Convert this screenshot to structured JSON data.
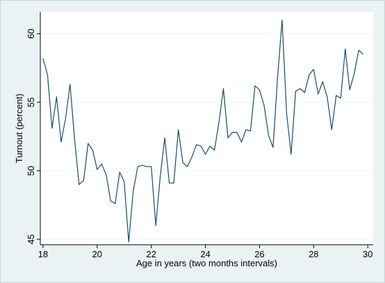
{
  "chart_data": {
    "type": "line",
    "title": "",
    "xlabel": "Age in years (two months intervals)",
    "ylabel": "Turnout (percent)",
    "xlim": [
      17.9,
      30.2
    ],
    "ylim": [
      44.6,
      61.6
    ],
    "xticks": [
      18,
      20,
      22,
      24,
      26,
      28,
      30
    ],
    "yticks": [
      45,
      50,
      55,
      60
    ],
    "grid": true,
    "colors": {
      "line": "#1a4a6a",
      "plot_bg": "#ffffff",
      "background": "#eaf2f3",
      "grid": "#eaf2f3"
    },
    "series": [
      {
        "x": [
          18.0,
          18.1667,
          18.3333,
          18.5,
          18.6667,
          18.8333,
          19.0,
          19.1667,
          19.3333,
          19.5,
          19.6667,
          19.8333,
          20.0,
          20.1667,
          20.3333,
          20.5,
          20.6667,
          20.8333,
          21.0,
          21.1667,
          21.3333,
          21.5,
          21.6667,
          21.8333,
          22.0,
          22.1667,
          22.3333,
          22.5,
          22.6667,
          22.8333,
          23.0,
          23.1667,
          23.3333,
          23.5,
          23.6667,
          23.8333,
          24.0,
          24.1667,
          24.3333,
          24.5,
          24.6667,
          24.8333,
          25.0,
          25.1667,
          25.3333,
          25.5,
          25.6667,
          25.8333,
          26.0,
          26.1667,
          26.3333,
          26.5,
          26.6667,
          26.8333,
          27.0,
          27.1667,
          27.3333,
          27.5,
          27.6667,
          27.8333,
          28.0,
          28.1667,
          28.3333,
          28.5,
          28.6667,
          28.8333,
          29.0,
          29.1667,
          29.3333,
          29.5,
          29.6667,
          29.8333
        ],
        "values": [
          58.2,
          57.0,
          53.1,
          55.4,
          52.1,
          53.8,
          56.3,
          52.3,
          49.0,
          49.3,
          52.0,
          51.5,
          50.1,
          50.5,
          49.7,
          47.8,
          47.6,
          49.9,
          49.2,
          44.8,
          48.5,
          50.3,
          50.4,
          50.3,
          50.3,
          46.0,
          49.6,
          52.4,
          49.1,
          49.1,
          53.0,
          50.6,
          50.3,
          51.0,
          51.9,
          51.8,
          51.2,
          51.8,
          51.5,
          53.5,
          56.0,
          52.4,
          52.8,
          52.8,
          52.1,
          53.0,
          52.9,
          56.2,
          55.9,
          54.8,
          52.6,
          51.7,
          56.8,
          61.0,
          54.2,
          51.2,
          55.8,
          56.0,
          55.7,
          57.0,
          57.4,
          55.6,
          56.5,
          55.4,
          53.0,
          55.5,
          55.3,
          58.9,
          55.9,
          57.1,
          58.8,
          58.5
        ]
      }
    ]
  }
}
